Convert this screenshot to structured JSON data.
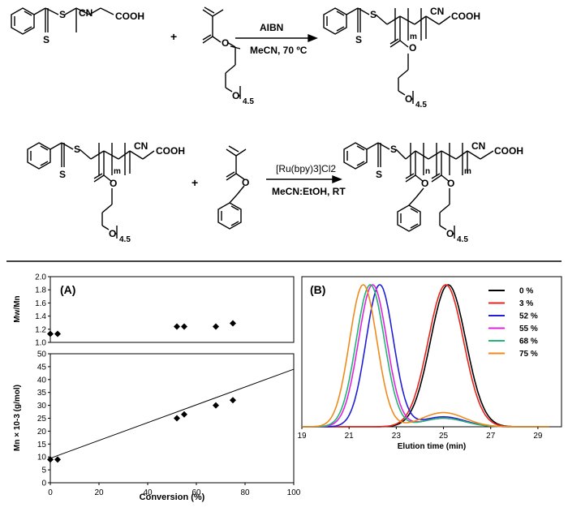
{
  "scheme": {
    "reaction1": {
      "reagent": "AIBN",
      "conditions": "MeCN, 70 ºC"
    },
    "reaction2": {
      "reagent": "[Ru(bpy)3]Cl2",
      "conditions": "MeCN:EtOH, RT"
    },
    "labels": {
      "cn": "CN",
      "cooh": "COOH",
      "s": "S",
      "o": "O",
      "m": "m",
      "n": "n",
      "repeat": "4.5",
      "plus": "+"
    }
  },
  "chart_data": [
    {
      "panel": "(A)",
      "type": "scatter",
      "subplots": [
        {
          "ylabel": "Mw/Mn",
          "ylim": [
            1.0,
            2.0
          ],
          "yticks": [
            "1.0",
            "1.2",
            "1.4",
            "1.6",
            "1.8",
            "2.0"
          ],
          "points": [
            [
              0,
              1.13
            ],
            [
              3,
              1.13
            ],
            [
              52,
              1.24
            ],
            [
              55,
              1.24
            ],
            [
              68,
              1.24
            ],
            [
              75,
              1.29
            ]
          ]
        },
        {
          "ylabel": "Mn × 10-3 (g/mol)",
          "ylim": [
            0,
            50
          ],
          "yticks": [
            "0",
            "5",
            "10",
            "15",
            "20",
            "25",
            "30",
            "35",
            "40",
            "45",
            "50"
          ],
          "points": [
            [
              0,
              9
            ],
            [
              3,
              9
            ],
            [
              52,
              25
            ],
            [
              55,
              26.5
            ],
            [
              68,
              30
            ],
            [
              75,
              32
            ]
          ],
          "fit_line": [
            [
              0,
              9.5
            ],
            [
              100,
              44
            ]
          ]
        }
      ],
      "xlabel": "Conversion (%)",
      "xlim": [
        0,
        100
      ],
      "xticks": [
        "0",
        "20",
        "40",
        "60",
        "80",
        "100"
      ]
    },
    {
      "panel": "(B)",
      "type": "line",
      "xlabel": "Elution time (min)",
      "xlim": [
        19,
        30
      ],
      "xticks": [
        "19",
        "21",
        "23",
        "25",
        "27",
        "29"
      ],
      "legend_position": "top-right",
      "series": [
        {
          "name": "0 %",
          "color": "#000000",
          "peak": 25.2,
          "width": 0.75,
          "shoulder": 0
        },
        {
          "name": "3 %",
          "color": "#e8231c",
          "peak": 25.1,
          "width": 0.75,
          "shoulder": 0
        },
        {
          "name": "52 %",
          "color": "#1f1fd6",
          "peak": 22.3,
          "width": 0.58,
          "shoulder": 0.07
        },
        {
          "name": "55 %",
          "color": "#e020e0",
          "peak": 22.0,
          "width": 0.6,
          "shoulder": 0.06
        },
        {
          "name": "68 %",
          "color": "#22b573",
          "peak": 21.9,
          "width": 0.6,
          "shoulder": 0.06
        },
        {
          "name": "75 %",
          "color": "#f08a1c",
          "peak": 21.6,
          "width": 0.58,
          "shoulder": 0.1
        }
      ]
    }
  ]
}
